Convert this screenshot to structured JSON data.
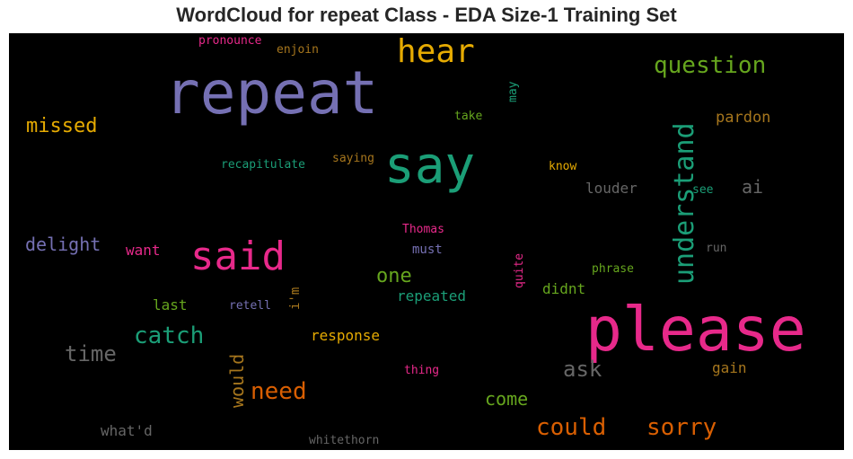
{
  "chart_data": {
    "type": "wordcloud",
    "title": "WordCloud for repeat Class - EDA Size-1 Training Set",
    "background": "#000000",
    "palette": [
      "#1b9e77",
      "#d95f02",
      "#7570b3",
      "#e7298a",
      "#66a61e",
      "#e6ab02",
      "#a6761d",
      "#666666"
    ],
    "words": [
      {
        "text": "please",
        "color": "#e7298a"
      },
      {
        "text": "repeat",
        "color": "#7570b3"
      },
      {
        "text": "say",
        "color": "#1b9e77"
      },
      {
        "text": "said",
        "color": "#e7298a"
      },
      {
        "text": "hear",
        "color": "#e6ab02"
      },
      {
        "text": "understand",
        "color": "#1b9e77"
      },
      {
        "text": "question",
        "color": "#66a61e"
      },
      {
        "text": "sorry",
        "color": "#d95f02"
      },
      {
        "text": "could",
        "color": "#d95f02"
      },
      {
        "text": "catch",
        "color": "#1b9e77"
      },
      {
        "text": "need",
        "color": "#d95f02"
      },
      {
        "text": "time",
        "color": "#666666"
      },
      {
        "text": "ask",
        "color": "#666666"
      },
      {
        "text": "missed",
        "color": "#e6ab02"
      },
      {
        "text": "delight",
        "color": "#7570b3"
      },
      {
        "text": "one",
        "color": "#66a61e"
      },
      {
        "text": "would",
        "color": "#a6761d"
      },
      {
        "text": "come",
        "color": "#66a61e"
      },
      {
        "text": "ai",
        "color": "#666666"
      },
      {
        "text": "pardon",
        "color": "#a6761d"
      },
      {
        "text": "louder",
        "color": "#666666"
      },
      {
        "text": "repeated",
        "color": "#1b9e77"
      },
      {
        "text": "response",
        "color": "#e6ab02"
      },
      {
        "text": "last",
        "color": "#66a61e"
      },
      {
        "text": "want",
        "color": "#e7298a"
      },
      {
        "text": "gain",
        "color": "#a6761d"
      },
      {
        "text": "didnt",
        "color": "#66a61e"
      },
      {
        "text": "what'd",
        "color": "#666666"
      },
      {
        "text": "must",
        "color": "#7570b3"
      },
      {
        "text": "i'm",
        "color": "#a6761d"
      },
      {
        "text": "recapitulate",
        "color": "#1b9e77"
      },
      {
        "text": "saying",
        "color": "#a6761d"
      },
      {
        "text": "take",
        "color": "#66a61e"
      },
      {
        "text": "enjoin",
        "color": "#a6761d"
      },
      {
        "text": "pronounce",
        "color": "#e7298a"
      },
      {
        "text": "retell",
        "color": "#7570b3"
      },
      {
        "text": "phrase",
        "color": "#66a61e"
      },
      {
        "text": "Thomas",
        "color": "#e7298a"
      },
      {
        "text": "know",
        "color": "#e6ab02"
      },
      {
        "text": "see",
        "color": "#1b9e77"
      },
      {
        "text": "run",
        "color": "#666666"
      },
      {
        "text": "thing",
        "color": "#e7298a"
      },
      {
        "text": "whitethorn",
        "color": "#666666"
      },
      {
        "text": "may",
        "color": "#1b9e77"
      },
      {
        "text": "quite",
        "color": "#e7298a"
      }
    ]
  }
}
